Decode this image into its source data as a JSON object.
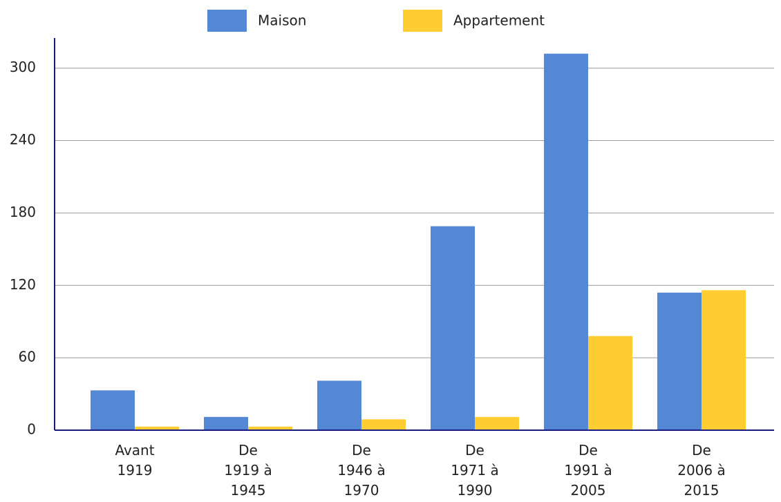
{
  "chart_data": {
    "type": "bar",
    "categories": [
      "Avant 1919",
      "De 1919 à 1945",
      "De 1946 à 1970",
      "De 1971 à 1990",
      "De 1991 à 2005",
      "De 2006 à 2015"
    ],
    "series": [
      {
        "name": "Maison",
        "color": "#5588d4",
        "values": [
          33,
          11,
          41,
          169,
          312,
          114
        ]
      },
      {
        "name": "Appartement",
        "color": "#fecd32",
        "values": [
          3,
          3,
          9,
          11,
          78,
          116
        ]
      }
    ],
    "ylim": [
      0,
      325
    ],
    "yticks": [
      0,
      60,
      120,
      180,
      240,
      300
    ],
    "grid": true,
    "legend": "top"
  }
}
